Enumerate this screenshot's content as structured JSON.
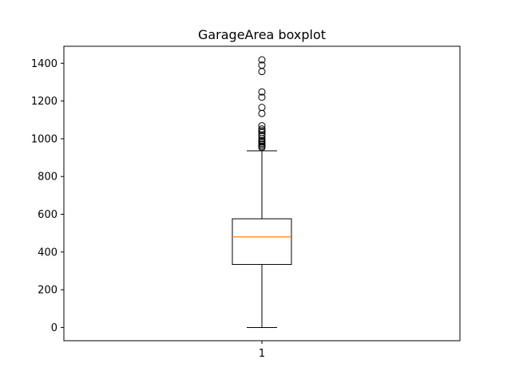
{
  "chart_data": {
    "type": "boxplot",
    "title": "GarageArea boxplot",
    "xlabel": "",
    "ylabel": "",
    "categories": [
      "1"
    ],
    "ylim": [
      -70,
      1490
    ],
    "yticks": [
      0,
      200,
      400,
      600,
      800,
      1000,
      1200,
      1400
    ],
    "grid": false,
    "box": {
      "whisker_low": 0,
      "q1": 334,
      "median": 480,
      "q3": 576,
      "whisker_high": 936
    },
    "outliers": [
      954,
      960,
      968,
      975,
      983,
      990,
      1000,
      1014,
      1020,
      1033,
      1043,
      1052,
      1069,
      1134,
      1166,
      1220,
      1248,
      1356,
      1390,
      1418
    ],
    "colors": {
      "box": "#000000",
      "median": "#ff7f0e",
      "outlier": "#000000"
    }
  }
}
